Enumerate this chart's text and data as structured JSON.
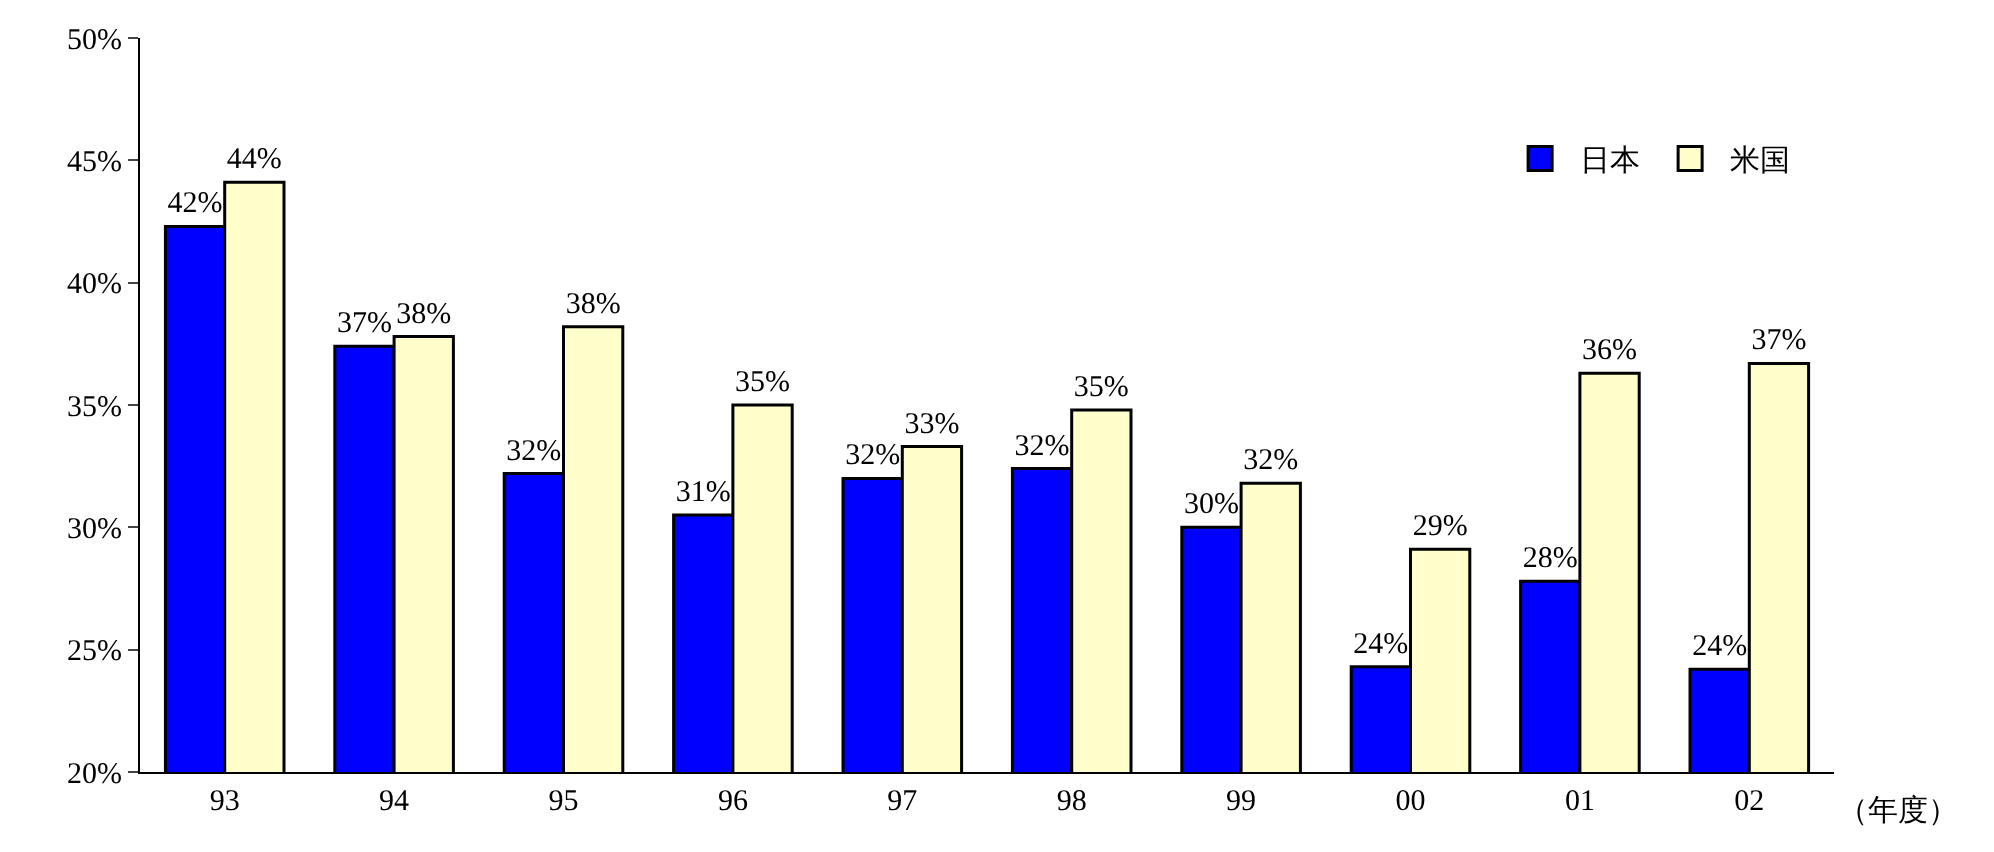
{
  "chart_data": {
    "type": "bar",
    "xlabel": "（年度）",
    "categories": [
      "93",
      "94",
      "95",
      "96",
      "97",
      "98",
      "99",
      "00",
      "01",
      "02"
    ],
    "series": [
      {
        "name": "日本",
        "color": "#0000ff",
        "values": [
          42.3,
          37.4,
          32.2,
          30.5,
          32.0,
          32.4,
          30.0,
          24.3,
          27.8,
          24.2
        ],
        "value_labels": [
          "42%",
          "37%",
          "32%",
          "31%",
          "32%",
          "32%",
          "30%",
          "24%",
          "28%",
          "24%"
        ]
      },
      {
        "name": "米国",
        "color": "#ffffcc",
        "values": [
          44.1,
          37.8,
          38.2,
          35.0,
          33.3,
          34.8,
          31.8,
          29.1,
          36.3,
          36.7
        ],
        "value_labels": [
          "44%",
          "38%",
          "38%",
          "35%",
          "33%",
          "35%",
          "32%",
          "29%",
          "36%",
          "37%"
        ]
      }
    ],
    "ylim": [
      20,
      50
    ],
    "yticks": [
      {
        "value": 20,
        "label": "20%"
      },
      {
        "value": 25,
        "label": "25%"
      },
      {
        "value": 30,
        "label": "30%"
      },
      {
        "value": 35,
        "label": "35%"
      },
      {
        "value": 40,
        "label": "40%"
      },
      {
        "value": 45,
        "label": "45%"
      },
      {
        "value": 50,
        "label": "50%"
      }
    ],
    "legend": "top right"
  }
}
